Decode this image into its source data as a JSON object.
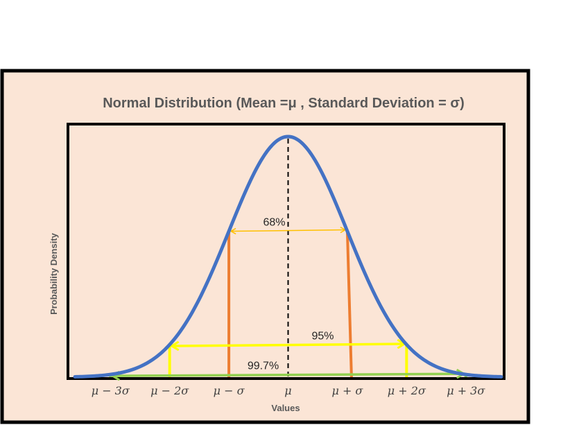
{
  "chart_data": {
    "type": "line",
    "title": "Normal Distribution (Mean =μ , Standard Deviation = σ)",
    "xlabel": "Values",
    "ylabel": "Probability Density",
    "xlim": [
      -3.6,
      3.6
    ],
    "ylim": [
      0,
      0.42
    ],
    "grid": false,
    "legend": "none",
    "series": [
      {
        "name": "",
        "color": "#4472C4",
        "function": "standard-normal-pdf"
      }
    ],
    "mean_line": {
      "x": 0,
      "color": "#000000",
      "style": "dashed"
    },
    "ticks": [
      {
        "x": -3,
        "label": "μ − 3σ"
      },
      {
        "x": -2,
        "label": "μ − 2σ"
      },
      {
        "x": -1,
        "label": "μ − σ"
      },
      {
        "x": 0,
        "label": "μ"
      },
      {
        "x": 1,
        "label": "μ + σ"
      },
      {
        "x": 2,
        "label": "μ + 2σ"
      },
      {
        "x": 3,
        "label": "μ + 3σ"
      }
    ],
    "intervals": [
      {
        "label": "68%",
        "from": -1,
        "to": 1,
        "line_color": "#ED7D31",
        "arrow_color": "#FFC000"
      },
      {
        "label": "95%",
        "from": -2,
        "to": 2,
        "line_color": "#FFFF00",
        "arrow_color": "#FFFF00"
      },
      {
        "label": "99.7%",
        "from": -3,
        "to": 3,
        "line_color": "#92D050",
        "arrow_color": "#92D050"
      }
    ],
    "colors": {
      "background": "#FBE5D6",
      "frame": "#000000",
      "curve": "#4472C4"
    }
  }
}
